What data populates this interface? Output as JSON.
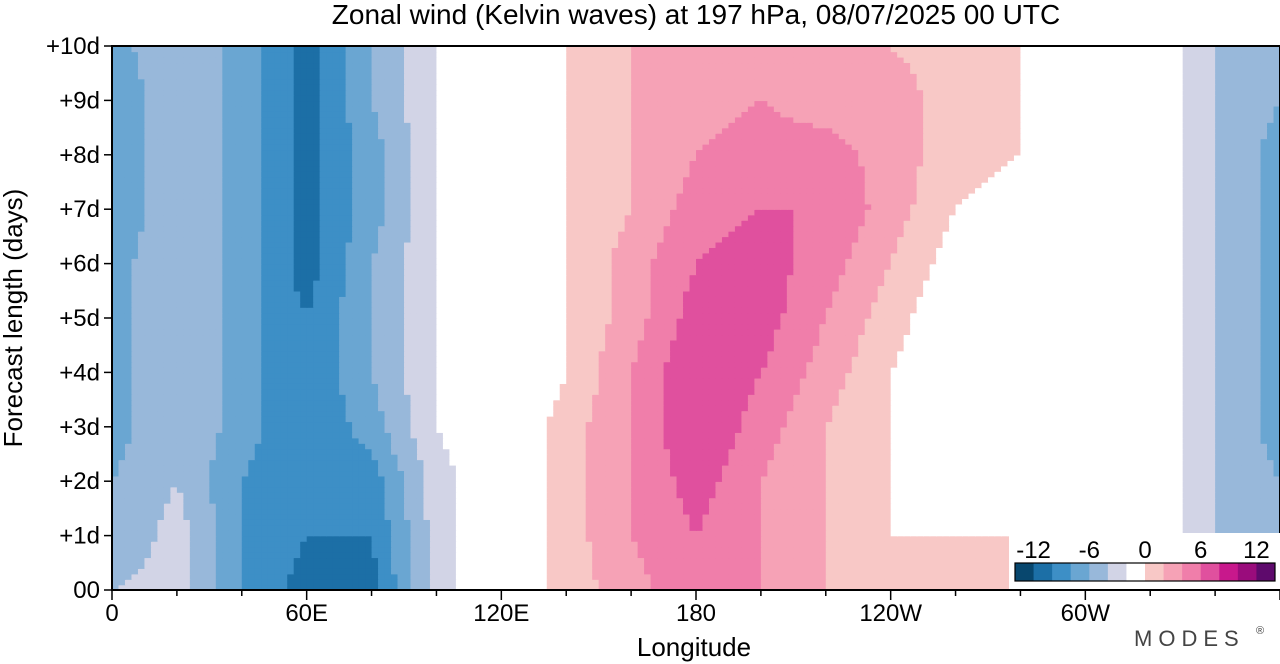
{
  "chart_data": {
    "type": "heatmap",
    "title": "Zonal wind (Kelvin waves) at 197 hPa,  08/07/2025  00 UTC",
    "xlabel": "Longitude",
    "ylabel": "Forecast length (days)",
    "x_ticks": [
      {
        "lon": 0,
        "label": "0"
      },
      {
        "lon": 60,
        "label": "60E"
      },
      {
        "lon": 120,
        "label": "120E"
      },
      {
        "lon": 180,
        "label": "180"
      },
      {
        "lon": 240,
        "label": "120W"
      },
      {
        "lon": 300,
        "label": "60W"
      }
    ],
    "y_ticks": [
      {
        "day": 0,
        "label": "00"
      },
      {
        "day": 1,
        "label": "+1d"
      },
      {
        "day": 2,
        "label": "+2d"
      },
      {
        "day": 3,
        "label": "+3d"
      },
      {
        "day": 4,
        "label": "+4d"
      },
      {
        "day": 5,
        "label": "+5d"
      },
      {
        "day": 6,
        "label": "+6d"
      },
      {
        "day": 7,
        "label": "+7d"
      },
      {
        "day": 8,
        "label": "+8d"
      },
      {
        "day": 9,
        "label": "+9d"
      },
      {
        "day": 10,
        "label": "+10d"
      }
    ],
    "xlim": [
      0,
      360
    ],
    "ylim": [
      0,
      10
    ],
    "colorbar": {
      "levels": [
        -14,
        -12,
        -10,
        -8,
        -6,
        -4,
        -2,
        2,
        4,
        6,
        8,
        10,
        12,
        14
      ],
      "labels": [
        {
          "value": -12,
          "text": "-12"
        },
        {
          "value": -6,
          "text": "-6"
        },
        {
          "value": 0,
          "text": "0"
        },
        {
          "value": 6,
          "text": "6"
        },
        {
          "value": 12,
          "text": "12"
        }
      ],
      "colors": [
        "#08476e",
        "#1c6fa6",
        "#3d8fc6",
        "#6aa6d2",
        "#98b8da",
        "#d2d4e6",
        "#ffffff",
        "#f8c8c6",
        "#f6a2b6",
        "#f07eaa",
        "#e0509e",
        "#c8188c",
        "#9a0c7c",
        "#5e0a6c"
      ]
    },
    "wind_field": {
      "units": "m/s",
      "lon": [
        0,
        20,
        40,
        60,
        80,
        100,
        120,
        140,
        160,
        180,
        200,
        220,
        240,
        260,
        280,
        300,
        320,
        340,
        360
      ],
      "day": [
        0,
        1,
        2,
        3,
        4,
        5,
        6,
        7,
        8,
        9,
        10
      ],
      "values": [
        [
          -4,
          -3,
          -8,
          -11,
          -11,
          -3,
          0,
          3,
          5,
          8,
          6,
          4,
          3,
          2,
          2,
          1,
          0,
          -4,
          -4
        ],
        [
          -6,
          -3,
          -8,
          -10,
          -10,
          -3,
          0,
          3,
          6,
          8,
          6,
          4,
          2,
          2,
          2,
          1,
          0,
          -4,
          -6
        ],
        [
          -6,
          -4,
          -8,
          -10,
          -9,
          -3,
          0,
          3,
          6,
          9,
          6,
          4,
          2,
          1,
          2,
          1,
          0,
          -4,
          -6
        ],
        [
          -7,
          -4,
          -7,
          -10,
          -7,
          -2,
          0,
          3,
          6,
          10,
          7,
          4,
          2,
          1,
          1,
          1,
          0,
          -4,
          -7
        ],
        [
          -7,
          -4,
          -7,
          -10,
          -6,
          -2,
          -1,
          2,
          6,
          10,
          8,
          5,
          2,
          0,
          -1,
          0,
          0,
          -4,
          -7
        ],
        [
          -7,
          -4,
          -7,
          -10,
          -6,
          -2,
          -1,
          2,
          5,
          9,
          9,
          6,
          3,
          0,
          0,
          0,
          0,
          -4,
          -7
        ],
        [
          -7,
          -4,
          -7,
          -11,
          -6,
          -2,
          0,
          2,
          5,
          8,
          9,
          7,
          4,
          1,
          0,
          0,
          0,
          -4,
          -7
        ],
        [
          -8,
          -4,
          -7,
          -11,
          -7,
          -2,
          0,
          2,
          4,
          7,
          8,
          8,
          5,
          2,
          1,
          0,
          0,
          -4,
          -7
        ],
        [
          -8,
          -4,
          -7,
          -11,
          -7,
          -2,
          0,
          2,
          4,
          6,
          7,
          7,
          5,
          3,
          2,
          0,
          0,
          -4,
          -7
        ],
        [
          -8,
          -4,
          -7,
          -11,
          -6,
          -2,
          0,
          2,
          4,
          5,
          6,
          5,
          5,
          3,
          2,
          0,
          0,
          -4,
          -6
        ],
        [
          -7,
          -4,
          -7,
          -11,
          -6,
          -2,
          0,
          2,
          4,
          5,
          5,
          5,
          4,
          3,
          2,
          0,
          0,
          -4,
          -6
        ]
      ]
    },
    "grid": false,
    "legend": "colorbar bottom-right"
  },
  "branding": {
    "text": "MODES",
    "mark": "®"
  }
}
